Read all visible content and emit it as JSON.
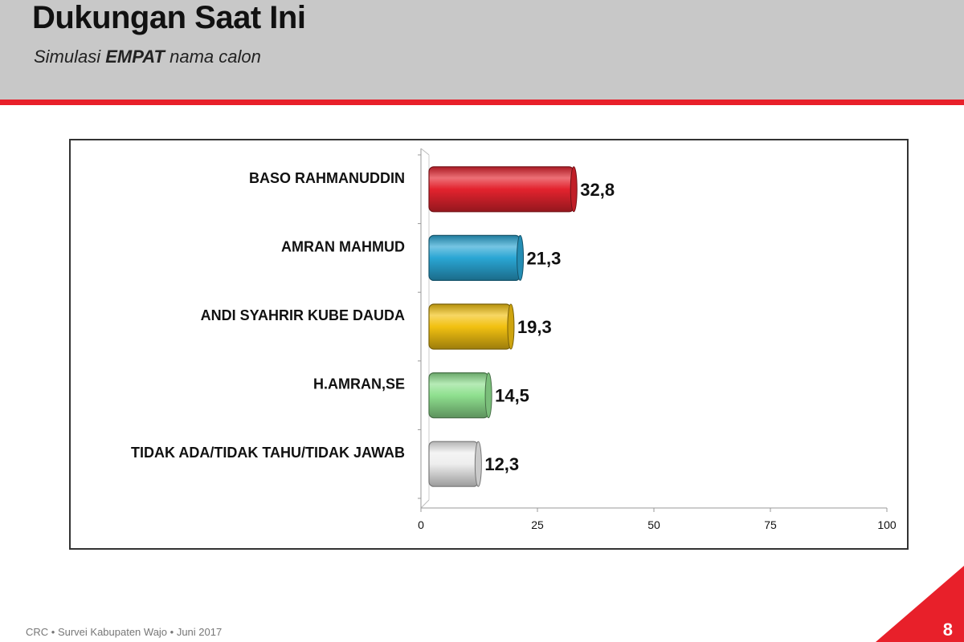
{
  "header": {
    "title": "Dukungan Saat Ini",
    "subtitle_prefix": "Simulasi ",
    "subtitle_bold": "EMPAT",
    "subtitle_suffix": " nama calon"
  },
  "footer": {
    "text": "CRC • Survei Kabupaten Wajo • Juni 2017",
    "page_number": "8"
  },
  "colors": {
    "accent": "#e8202a",
    "header_band": "#c8c8c8"
  },
  "chart_data": {
    "type": "bar",
    "orientation": "horizontal",
    "categories": [
      "BASO RAHMANUDDIN",
      "AMRAN MAHMUD",
      "ANDI SYAHRIR KUBE DAUDA",
      "H.AMRAN,SE",
      "TIDAK ADA/TIDAK TAHU/TIDAK JAWAB"
    ],
    "values": [
      32.8,
      21.3,
      19.3,
      14.5,
      12.3
    ],
    "value_labels": [
      "32,8",
      "21,3",
      "19,3",
      "14,5",
      "12,3"
    ],
    "bar_colors": [
      "#e3232e",
      "#2aa6d4",
      "#f2c111",
      "#8fe08f",
      "#eeeeee"
    ],
    "xlim": [
      0,
      100
    ],
    "xticks": [
      "0",
      "25",
      "50",
      "75",
      "100"
    ],
    "grid": false,
    "legend": false
  }
}
